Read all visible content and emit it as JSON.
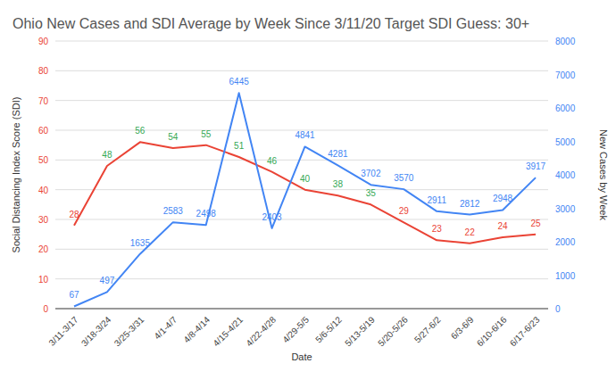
{
  "chart_data": {
    "type": "line",
    "title": "Ohio New Cases and SDI Average by Week Since 3/11/20 Target SDI Guess: 30+",
    "x_label": "Date",
    "y_label": "Social Distancing Index Score (SDI)",
    "y2_label": "New Cases by Week",
    "categories": [
      "3/11-3/17",
      "3/18-3/24",
      "3/25-3/31",
      "4/1-4/7",
      "4/8-4/14",
      "4/15-4/21",
      "4/22-4/28",
      "4/29-5/5",
      "5/6-5/12",
      "5/13-5/19",
      "5/20-5/26",
      "5/27-6/2",
      "6/3-6/9",
      "6/10-6/16",
      "6/17-6/23"
    ],
    "series": [
      {
        "color": "#ea4335",
        "values": [
          28,
          48,
          56,
          54,
          55,
          51,
          46,
          40,
          38,
          35,
          29,
          23,
          22,
          24,
          25
        ],
        "colors": [
          "#ea4335",
          "#34a853",
          "#34a853",
          "#34a853",
          "#34a853",
          "#34a853",
          "#34a853",
          "#34a853",
          "#34a853",
          "#34a853",
          "#ea4335",
          "#ea4335",
          "#ea4335",
          "#ea4335",
          "#ea4335"
        ]
      },
      {
        "color": "#4285f4",
        "axis": "y2",
        "values": [
          67,
          497,
          1635,
          2583,
          2498,
          6445,
          2403,
          4841,
          4281,
          3702,
          3570,
          2911,
          2812,
          2948,
          3917
        ]
      }
    ],
    "ylim": [
      0,
      90
    ],
    "yticks": [
      0,
      10,
      20,
      30,
      40,
      50,
      60,
      70,
      80,
      90
    ],
    "y2lim": [
      0,
      8000
    ],
    "y2ticks": [
      0,
      1000,
      2000,
      3000,
      4000,
      5000,
      6000,
      7000,
      8000
    ],
    "grid": true,
    "data_labels": true
  }
}
